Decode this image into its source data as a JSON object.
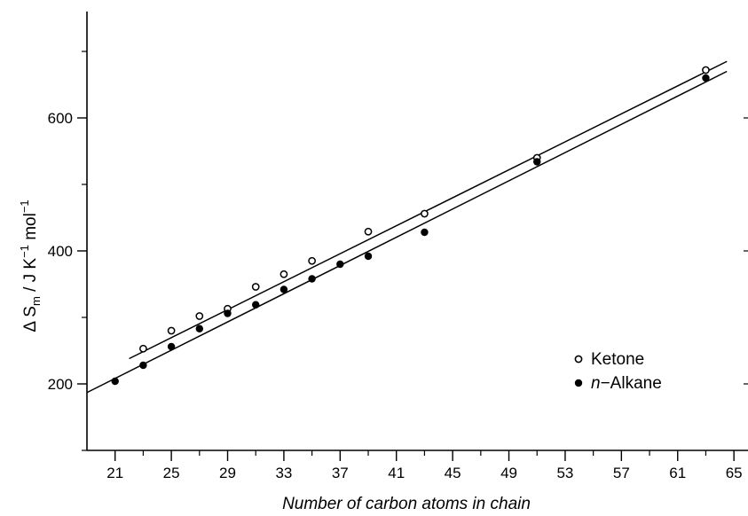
{
  "chart_data": {
    "type": "scatter",
    "xlabel": "Number of carbon atoms in chain",
    "ylabel": {
      "base": "Δ S",
      "sub": "m",
      "unit_prefix": " / J K",
      "exp1": "−1",
      "unit_mid": " mol",
      "exp2": "−1"
    },
    "xlim": [
      19,
      66
    ],
    "ylim": [
      100,
      760
    ],
    "x_ticks": [
      21,
      25,
      29,
      33,
      37,
      41,
      45,
      49,
      53,
      57,
      61,
      65
    ],
    "x_minor_ticks": [
      23,
      27,
      31,
      35,
      39,
      43,
      47,
      51,
      55,
      59,
      63
    ],
    "y_ticks": [
      200,
      400,
      600
    ],
    "y_minor_ticks": [
      100,
      300,
      500,
      700
    ],
    "grid": false,
    "legend_position": "bottom-right",
    "series": [
      {
        "name": "Ketone",
        "marker": "open-circle",
        "x": [
          23,
          25,
          27,
          29,
          31,
          33,
          35,
          39,
          43,
          51,
          63
        ],
        "y": [
          253,
          280,
          302,
          313,
          346,
          365,
          385,
          429,
          456,
          540,
          672
        ],
        "fit_line": {
          "x": [
            22,
            64.5
          ],
          "y": [
            238,
            685
          ]
        }
      },
      {
        "name": "n-Alkane",
        "name_italic": "n",
        "name_rest": "−Alkane",
        "marker": "filled-circle",
        "x": [
          21,
          23,
          25,
          27,
          29,
          31,
          33,
          35,
          37,
          39,
          43,
          51,
          63
        ],
        "y": [
          204,
          228,
          256,
          283,
          306,
          319,
          342,
          358,
          380,
          392,
          428,
          534,
          660
        ],
        "fit_line": {
          "x": [
            19,
            64.5
          ],
          "y": [
            187,
            670
          ]
        }
      }
    ]
  }
}
